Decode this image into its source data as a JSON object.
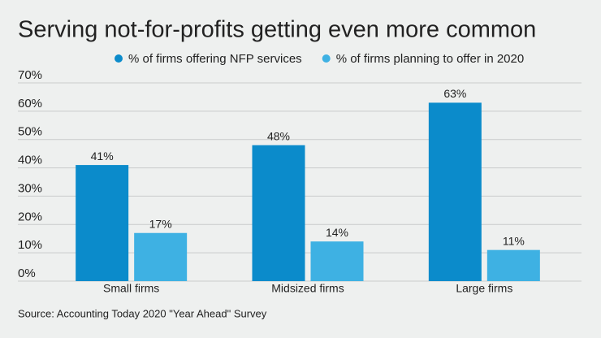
{
  "chart_data": {
    "type": "bar",
    "title": "Serving not-for-profits getting even more common",
    "source": "Source: Accounting Today 2020 \"Year Ahead\" Survey",
    "categories": [
      "Small firms",
      "Midsized firms",
      "Large firms"
    ],
    "series": [
      {
        "name": "% of firms offering NFP services",
        "color": "#0b8bcb",
        "values": [
          41,
          48,
          63
        ],
        "value_labels": [
          "41%",
          "48%",
          "63%"
        ]
      },
      {
        "name": "% of firms planning to offer in 2020",
        "color": "#3eb1e3",
        "values": [
          17,
          14,
          11
        ],
        "value_labels": [
          "17%",
          "14%",
          "11%"
        ]
      }
    ],
    "ylim": [
      0,
      70
    ],
    "yticks": [
      {
        "value": 0,
        "label": "0%"
      },
      {
        "value": 10,
        "label": "10%"
      },
      {
        "value": 20,
        "label": "20%"
      },
      {
        "value": 30,
        "label": "30%"
      },
      {
        "value": 40,
        "label": "40%"
      },
      {
        "value": 50,
        "label": "50%"
      },
      {
        "value": 60,
        "label": "60%"
      },
      {
        "value": 70,
        "label": "70%"
      }
    ],
    "grid": true
  }
}
